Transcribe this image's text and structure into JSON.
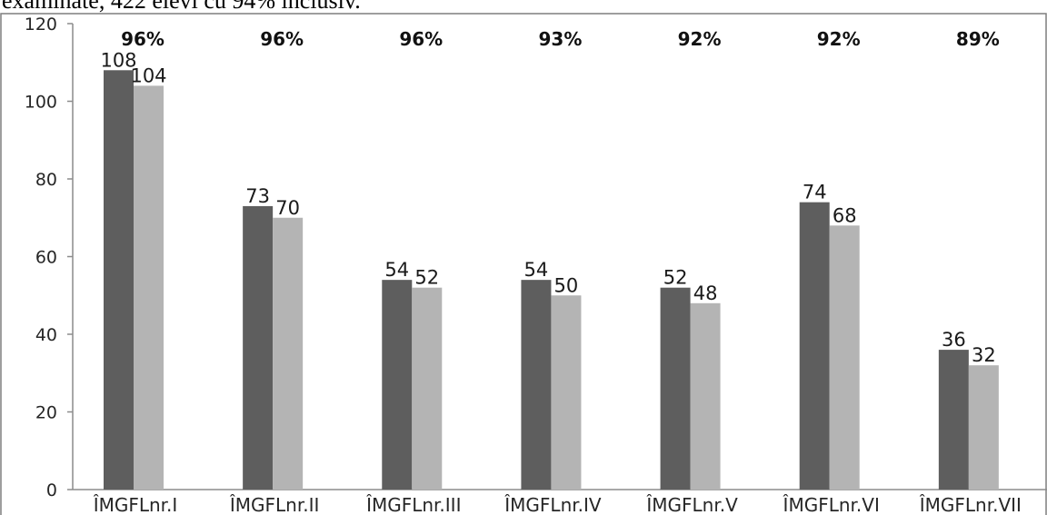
{
  "page": {
    "cut_off_text": "examinate, 422 elevi cu 94% inclusiv."
  },
  "colors": {
    "series_1": "#5e5e5e",
    "series_2": "#b4b4b4",
    "axis": "#8c8c8c",
    "frame": "#7f7f7f"
  },
  "chart_data": {
    "type": "bar",
    "title": "",
    "xlabel": "",
    "ylabel": "",
    "ylim": [
      0,
      120
    ],
    "yticks": [
      0,
      20,
      40,
      60,
      80,
      100,
      120
    ],
    "grid": false,
    "legend": "none",
    "categories": [
      "ÎMGFLnr.I",
      "ÎMGFLnr.II",
      "ÎMGFLnr.III",
      "ÎMGFLnr.IV",
      "ÎMGFLnr.V",
      "ÎMGFLnr.VI",
      "ÎMGFLnr.VII"
    ],
    "series": [
      {
        "values": [
          108,
          73,
          54,
          54,
          52,
          74,
          36
        ]
      },
      {
        "values": [
          104,
          70,
          52,
          50,
          48,
          68,
          32
        ]
      }
    ],
    "annotations": [
      "96%",
      "96%",
      "96%",
      "93%",
      "92%",
      "92%",
      "89%"
    ]
  }
}
